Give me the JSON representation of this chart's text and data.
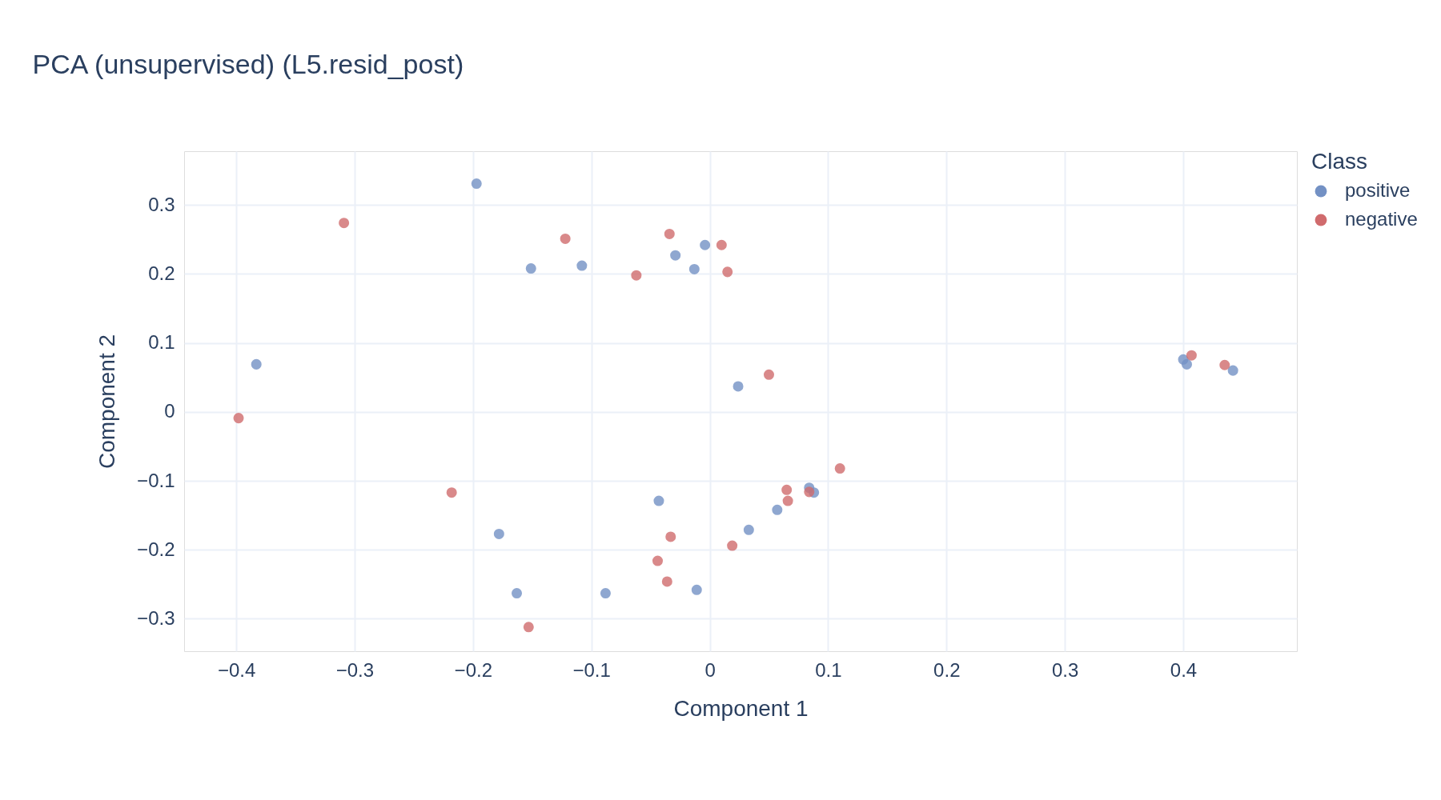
{
  "chart_data": {
    "type": "scatter",
    "title": "PCA (unsupervised) (L5.resid_post)",
    "xlabel": "Component 1",
    "ylabel": "Component 2",
    "legend_title": "Class",
    "xlim": [
      -0.444,
      0.496
    ],
    "ylim": [
      -0.347,
      0.378
    ],
    "xticks": [
      -0.4,
      -0.3,
      -0.2,
      -0.1,
      0,
      0.1,
      0.2,
      0.3,
      0.4
    ],
    "yticks": [
      -0.3,
      -0.2,
      -0.1,
      0,
      0.1,
      0.2,
      0.3
    ],
    "grid": true,
    "legend": "top right",
    "marker": "circle",
    "series": [
      {
        "name": "positive",
        "color": "#7391c4",
        "x": [
          -0.197,
          -0.151,
          -0.108,
          -0.029,
          -0.004,
          -0.013,
          -0.383,
          0.024,
          0.4,
          0.403,
          0.442,
          -0.043,
          -0.178,
          -0.163,
          -0.088,
          -0.011,
          0.033,
          0.057,
          0.084,
          0.088
        ],
        "values": [
          0.331,
          0.208,
          0.212,
          0.227,
          0.242,
          0.207,
          0.069,
          0.037,
          0.076,
          0.069,
          0.06,
          -0.129,
          -0.177,
          -0.263,
          -0.263,
          -0.258,
          -0.171,
          -0.142,
          -0.11,
          -0.117
        ]
      },
      {
        "name": "negative",
        "color": "#d06b6d",
        "x": [
          -0.309,
          -0.122,
          -0.034,
          0.01,
          -0.062,
          0.015,
          -0.398,
          0.05,
          0.407,
          0.435,
          0.11,
          -0.218,
          0.065,
          0.066,
          0.084,
          -0.033,
          0.019,
          -0.044,
          -0.036,
          -0.153
        ],
        "values": [
          0.274,
          0.251,
          0.258,
          0.242,
          0.198,
          0.203,
          -0.009,
          0.054,
          0.082,
          0.068,
          -0.082,
          -0.117,
          -0.113,
          -0.129,
          -0.116,
          -0.181,
          -0.194,
          -0.216,
          -0.246,
          -0.312
        ]
      }
    ]
  }
}
